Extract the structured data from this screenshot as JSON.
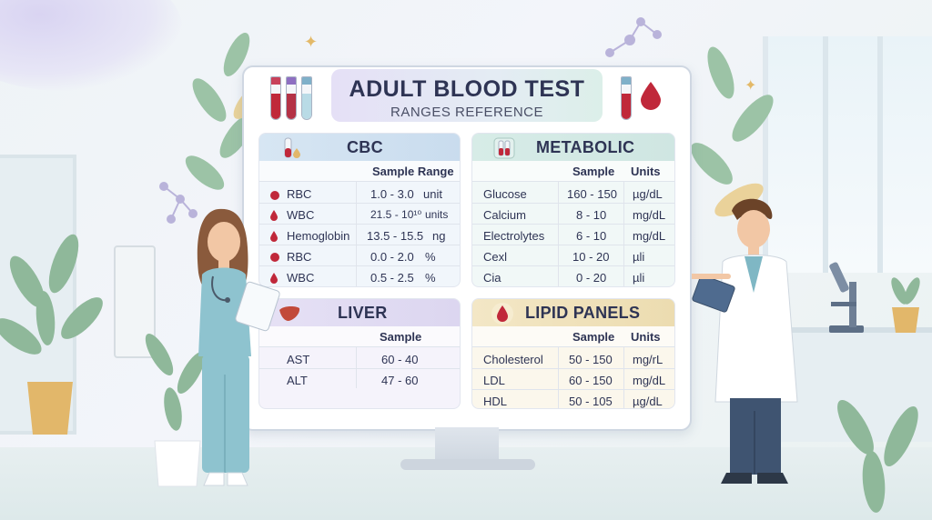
{
  "title": {
    "main": "ADULT BLOOD TEST",
    "sub": "RANGES REFERENCE"
  },
  "colors": {
    "blood": "#c0283a",
    "cbc": "#c9dcee",
    "metabolic": "#cfe6e2",
    "liver": "#dcd6f0",
    "lipid": "#ecdcb0",
    "ink": "#2e3454"
  },
  "cbc": {
    "title": "CBC",
    "icon": "test-tube-icon",
    "col_range": "Sample Range",
    "rows": [
      {
        "name": "RBC",
        "value": "1.0 - 3.0",
        "unit": "unit"
      },
      {
        "name": "WBC",
        "value": "21.5 - 10¹⁰",
        "unit": "units"
      },
      {
        "name": "Hemoglobin",
        "value": "13.5 - 15.5",
        "unit": "ng"
      },
      {
        "name": "RBC",
        "value": "0.0 - 2.0",
        "unit": "%"
      },
      {
        "name": "WBC",
        "value": "0.5 - 2.5",
        "unit": "%"
      }
    ]
  },
  "metabolic": {
    "title": "METABOLIC",
    "icon": "test-tubes-icon",
    "col_sample": "Sample",
    "col_units": "Units",
    "rows": [
      {
        "name": "Glucose",
        "value": "160 - 150",
        "unit": "µg/dL"
      },
      {
        "name": "Calcium",
        "value": "8 - 10",
        "unit": "mg/dL"
      },
      {
        "name": "Electrolytes",
        "value": "6 - 10",
        "unit": "mg/dL"
      },
      {
        "name": "Cexl",
        "value": "10 - 20",
        "unit": "µli"
      },
      {
        "name": "Cia",
        "value": "0 - 20",
        "unit": "µli"
      }
    ]
  },
  "liver": {
    "title": "LIVER",
    "icon": "liver-icon",
    "col_sample": "Sample",
    "rows": [
      {
        "name": "AST",
        "value": "60 - 40"
      },
      {
        "name": "ALT",
        "value": "47 - 60"
      }
    ]
  },
  "lipid": {
    "title": "LIPID PANELS",
    "icon": "blood-drop-icon",
    "col_sample": "Sample",
    "col_units": "Units",
    "rows": [
      {
        "name": "Cholesterol",
        "value": "50 - 150",
        "unit": "mg/rL"
      },
      {
        "name": "LDL",
        "value": "60 - 150",
        "unit": "mg/dL"
      },
      {
        "name": "HDL",
        "value": "50 - 105",
        "unit": "µg/dL"
      }
    ]
  }
}
